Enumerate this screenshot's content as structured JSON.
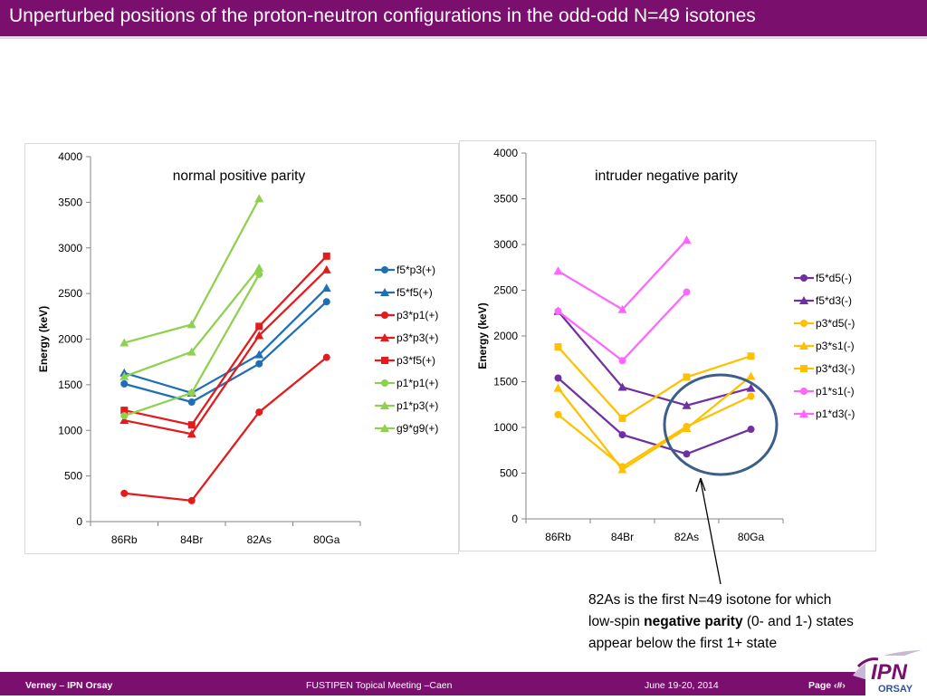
{
  "slide": {
    "title": "Unperturbed positions of the proton-neutron configurations in the odd-odd N=49 isotones"
  },
  "footer": {
    "author": "Verney – IPN Orsay",
    "event": "FUSTIPEN Topical Meeting –Caen",
    "date": "June 19-20, 2014",
    "page": "Page ‹#›"
  },
  "logo": {
    "text_ipn": "IPN",
    "text_orsay": "ORSAY"
  },
  "annotation": {
    "part1": "82As is the first N=49 isotone for which  low-spin ",
    "bold": "negative parity",
    "part2": " (0- and 1-) states appear below the first 1+ state"
  },
  "colors": {
    "brand": "#7a0f6e",
    "ellipse": "#3b5f8a"
  },
  "chart_data": [
    {
      "type": "line",
      "title": "normal positive parity",
      "ylabel": "Energy (keV)",
      "xlabel": "",
      "categories": [
        "86Rb",
        "84Br",
        "82As",
        "80Ga"
      ],
      "ylim": [
        0,
        4000
      ],
      "yticks": [
        0,
        500,
        1000,
        1500,
        2000,
        2500,
        3000,
        3500,
        4000
      ],
      "grid": false,
      "legend_position": "right",
      "series": [
        {
          "name": "f5*p3(+)",
          "color": "#1f6fb5",
          "marker": "circle",
          "values": [
            1510,
            1310,
            1730,
            2410
          ]
        },
        {
          "name": "f5*f5(+)",
          "color": "#1f6fb5",
          "marker": "triangle",
          "values": [
            1630,
            1410,
            1830,
            2560
          ]
        },
        {
          "name": "p3*p1(+)",
          "color": "#e41a1c",
          "marker": "circle",
          "values": [
            310,
            230,
            1200,
            1800
          ]
        },
        {
          "name": "p3*p3(+)",
          "color": "#e41a1c",
          "marker": "triangle",
          "values": [
            1110,
            960,
            2040,
            2760
          ]
        },
        {
          "name": "p3*f5(+)",
          "color": "#e41a1c",
          "marker": "square",
          "values": [
            1220,
            1060,
            2140,
            2910
          ]
        },
        {
          "name": "p1*p1(+)",
          "color": "#8fd14f",
          "marker": "circle",
          "values": [
            1160,
            1410,
            2710,
            null
          ]
        },
        {
          "name": "p1*p3(+)",
          "color": "#8fd14f",
          "marker": "triangle",
          "values": [
            1590,
            1860,
            2780,
            null
          ]
        },
        {
          "name": "g9*g9(+)",
          "color": "#8fd14f",
          "marker": "triangle",
          "values": [
            1960,
            2160,
            3540,
            null
          ]
        }
      ]
    },
    {
      "type": "line",
      "title": "intruder negative parity",
      "ylabel": "Energy (keV)",
      "xlabel": "",
      "categories": [
        "86Rb",
        "84Br",
        "82As",
        "80Ga"
      ],
      "ylim": [
        0,
        4000
      ],
      "yticks": [
        0,
        500,
        1000,
        1500,
        2000,
        2500,
        3000,
        3500,
        4000
      ],
      "grid": false,
      "legend_position": "right",
      "series": [
        {
          "name": "f5*d5(-)",
          "color": "#7030a0",
          "marker": "circle",
          "values": [
            1540,
            920,
            710,
            980
          ]
        },
        {
          "name": "f5*d3(-)",
          "color": "#7030a0",
          "marker": "triangle",
          "values": [
            2270,
            1440,
            1240,
            1430
          ]
        },
        {
          "name": "p3*d5(-)",
          "color": "#ffc000",
          "marker": "circle",
          "values": [
            1140,
            570,
            1010,
            1340
          ]
        },
        {
          "name": "p3*s1(-)",
          "color": "#ffc000",
          "marker": "triangle",
          "values": [
            1430,
            540,
            990,
            1560
          ]
        },
        {
          "name": "p3*d3(-)",
          "color": "#ffc000",
          "marker": "square",
          "values": [
            1880,
            1100,
            1550,
            1780
          ]
        },
        {
          "name": "p1*s1(-)",
          "color": "#ff66ff",
          "marker": "circle",
          "values": [
            2270,
            1730,
            2480,
            null
          ]
        },
        {
          "name": "p1*d3(-)",
          "color": "#ff66ff",
          "marker": "triangle",
          "values": [
            2710,
            2290,
            3050,
            null
          ]
        }
      ]
    }
  ]
}
